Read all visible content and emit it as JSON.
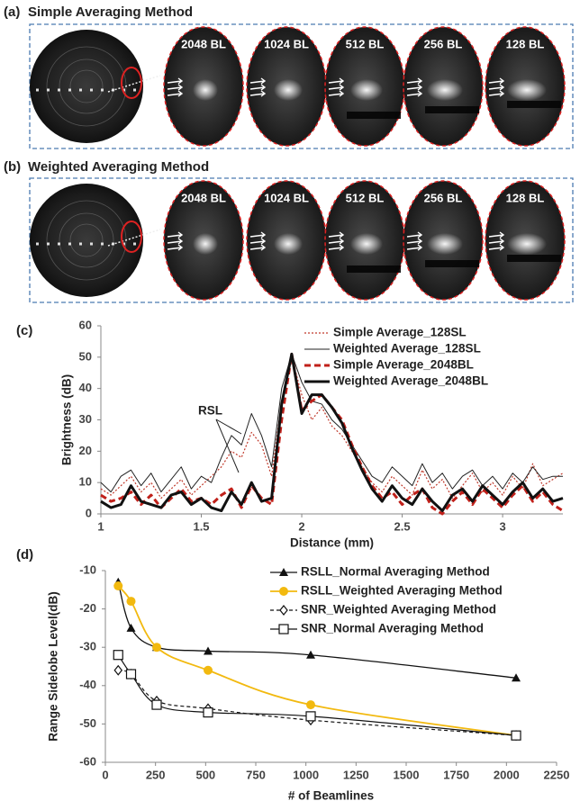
{
  "panels": [
    {
      "label": "(a)",
      "title": "Simple Averaging Method",
      "images": [
        "2048 BL",
        "1024 BL",
        "512 BL",
        "256 BL",
        "128 BL"
      ]
    },
    {
      "label": "(b)",
      "title": "Weighted Averaging Method",
      "images": [
        "2048 BL",
        "1024 BL",
        "512 BL",
        "256 BL",
        "128 BL"
      ]
    }
  ],
  "chart_data": [
    {
      "type": "line",
      "label": "(c)",
      "x_label": "Distance (mm)",
      "y_label": "Brightness (dB)",
      "annotation": "RSL",
      "x": [
        1,
        1.05,
        1.1,
        1.15,
        1.2,
        1.25,
        1.3,
        1.35,
        1.4,
        1.45,
        1.5,
        1.55,
        1.6,
        1.65,
        1.7,
        1.75,
        1.8,
        1.85,
        1.9,
        1.95,
        2,
        2.05,
        2.1,
        2.15,
        2.2,
        2.25,
        2.3,
        2.35,
        2.4,
        2.45,
        2.5,
        2.55,
        2.6,
        2.65,
        2.7,
        2.75,
        2.8,
        2.85,
        2.9,
        2.95,
        3,
        3.05,
        3.1,
        3.15,
        3.2,
        3.25,
        3.3
      ],
      "xlim": [
        1,
        3.3
      ],
      "xticks": [
        1,
        1.5,
        2,
        2.5,
        3
      ],
      "ylim": [
        0,
        60
      ],
      "yticks": [
        0,
        10,
        20,
        30,
        40,
        50,
        60
      ],
      "grid": false,
      "series": [
        {
          "name": "Simple Average_128SL",
          "color": "#c0392b",
          "width": 1.2,
          "dash": "2,2",
          "values": [
            8,
            6,
            9,
            12,
            7,
            10,
            5,
            8,
            11,
            6,
            9,
            12,
            15,
            20,
            18,
            26,
            22,
            12,
            36,
            50,
            38,
            30,
            34,
            28,
            25,
            20,
            15,
            10,
            7,
            12,
            9,
            6,
            14,
            8,
            11,
            5,
            9,
            13,
            7,
            10,
            6,
            12,
            8,
            16,
            9,
            11,
            13
          ]
        },
        {
          "name": "Weighted Average_128SL",
          "color": "#222222",
          "width": 1,
          "dash": "none",
          "values": [
            10,
            7,
            12,
            14,
            9,
            13,
            7,
            11,
            15,
            8,
            12,
            10,
            18,
            25,
            22,
            32,
            25,
            15,
            40,
            51,
            42,
            36,
            35,
            30,
            27,
            22,
            17,
            12,
            10,
            15,
            12,
            9,
            16,
            10,
            13,
            8,
            12,
            14,
            9,
            12,
            8,
            13,
            10,
            15,
            11,
            12,
            12
          ]
        },
        {
          "name": "Simple Average_2048BL",
          "color": "#c0201a",
          "width": 3,
          "dash": "7,4",
          "values": [
            6,
            4,
            5,
            7,
            3,
            6,
            2,
            5,
            8,
            4,
            5,
            3,
            6,
            8,
            2,
            9,
            5,
            3,
            30,
            51,
            33,
            36,
            38,
            34,
            30,
            22,
            15,
            9,
            5,
            7,
            3,
            6,
            8,
            2,
            0,
            4,
            7,
            3,
            8,
            5,
            2,
            6,
            9,
            4,
            7,
            3,
            1
          ]
        },
        {
          "name": "Weighted Average_2048BL",
          "color": "#111111",
          "width": 3,
          "dash": "none",
          "values": [
            4,
            2,
            3,
            9,
            4,
            3,
            2,
            6,
            7,
            3,
            5,
            2,
            1,
            7,
            3,
            10,
            4,
            5,
            35,
            51,
            32,
            38,
            38,
            34,
            29,
            21,
            14,
            8,
            4,
            9,
            5,
            3,
            8,
            4,
            1,
            6,
            8,
            4,
            9,
            6,
            3,
            7,
            10,
            5,
            8,
            4,
            5
          ]
        }
      ]
    },
    {
      "type": "line",
      "label": "(d)",
      "x_label": "# of Beamlines",
      "y_label": "Range Sidelobe Level(dB)",
      "x": [
        64,
        128,
        256,
        512,
        1024,
        2048
      ],
      "xlim": [
        0,
        2250
      ],
      "xticks": [
        0,
        250,
        500,
        750,
        1000,
        1250,
        1500,
        1750,
        2000,
        2250
      ],
      "ylim": [
        -60,
        -10
      ],
      "yticks": [
        -10,
        -20,
        -30,
        -40,
        -50,
        -60
      ],
      "grid": false,
      "series": [
        {
          "name": "RSLL_Normal Averaging Method",
          "color": "#111111",
          "width": 1.3,
          "dash": "none",
          "marker": "triangle",
          "values": [
            -13,
            -25,
            -30,
            -31,
            -32,
            -38
          ]
        },
        {
          "name": "RSLL_Weighted Averaging Method",
          "color": "#f2b90f",
          "width": 1.8,
          "dash": "none",
          "marker": "circle",
          "values": [
            -14,
            -18,
            -30,
            -36,
            -45,
            -53
          ]
        },
        {
          "name": "SNR_Weighted Averaging Method",
          "color": "#111111",
          "width": 1.2,
          "dash": "4,3",
          "marker": "diamond",
          "values": [
            -36,
            -37,
            -44,
            -46,
            -49,
            -53
          ]
        },
        {
          "name": "SNR_Normal Averaging Method",
          "color": "#111111",
          "width": 1.2,
          "dash": "none",
          "marker": "square",
          "values": [
            -32,
            -37,
            -45,
            -47,
            -48,
            -53
          ]
        }
      ]
    }
  ]
}
